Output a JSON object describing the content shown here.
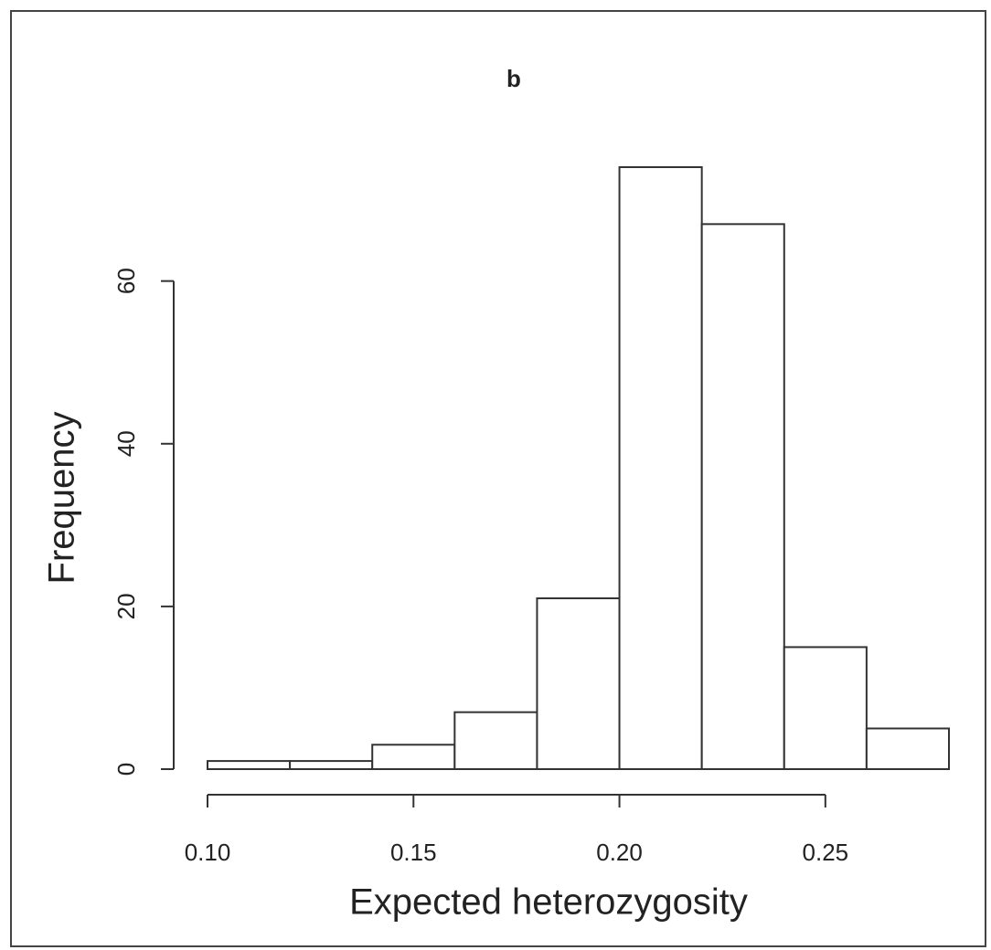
{
  "chart_data": {
    "type": "histogram",
    "title": "b",
    "x_label": "Expected heterozygosity",
    "y_label": "Frequency",
    "bins": [
      0.1,
      0.12,
      0.14,
      0.16,
      0.18,
      0.2,
      0.22,
      0.24,
      0.26,
      0.28
    ],
    "values": [
      1,
      1,
      3,
      7,
      21,
      74,
      67,
      15,
      5
    ],
    "color": "#ffffff",
    "xlim": [
      0.1,
      0.28
    ],
    "ylim": [
      0,
      74
    ],
    "xticks": [
      {
        "value": 0.1,
        "label": "0.10"
      },
      0.15,
      {
        "value": 0.2,
        "label": "0.20"
      },
      0.25
    ],
    "yticks": [
      0,
      20,
      40,
      60
    ]
  }
}
